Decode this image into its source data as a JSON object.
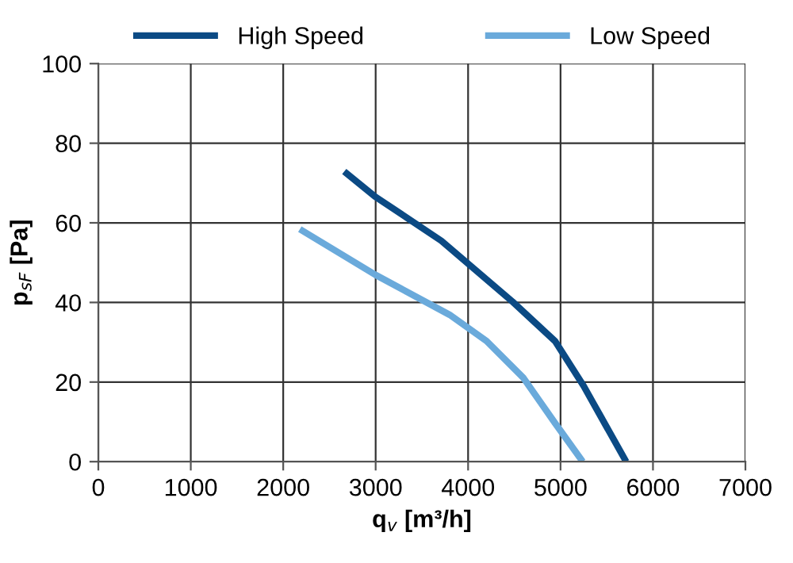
{
  "chart_data": {
    "type": "line",
    "xlabel": "q$_{v}$ [m³/h]",
    "ylabel": "p$_{sF}$ [Pa]",
    "xlim": [
      0,
      7000
    ],
    "xticks": [
      0,
      1000,
      2000,
      3000,
      4000,
      5000,
      6000,
      7000
    ],
    "ylim": [
      0,
      100
    ],
    "yticks": [
      0,
      20,
      40,
      60,
      80,
      100
    ],
    "grid": true,
    "legend": "top",
    "marker": "none",
    "line_style": "solid",
    "series": [
      {
        "name": "High Speed",
        "color": "#0b4a84",
        "x": [
          2660,
          3000,
          3710,
          4480,
          4940,
          5250,
          5710
        ],
        "values": [
          72.9,
          66.5,
          55.5,
          40.2,
          30.3,
          19,
          0
        ]
      },
      {
        "name": "Low Speed",
        "color": "#6aaadb",
        "x": [
          2180,
          3000,
          3800,
          4200,
          4600,
          4940,
          5240
        ],
        "values": [
          58.4,
          46.9,
          36.9,
          30.3,
          21,
          9.7,
          0
        ]
      }
    ]
  }
}
